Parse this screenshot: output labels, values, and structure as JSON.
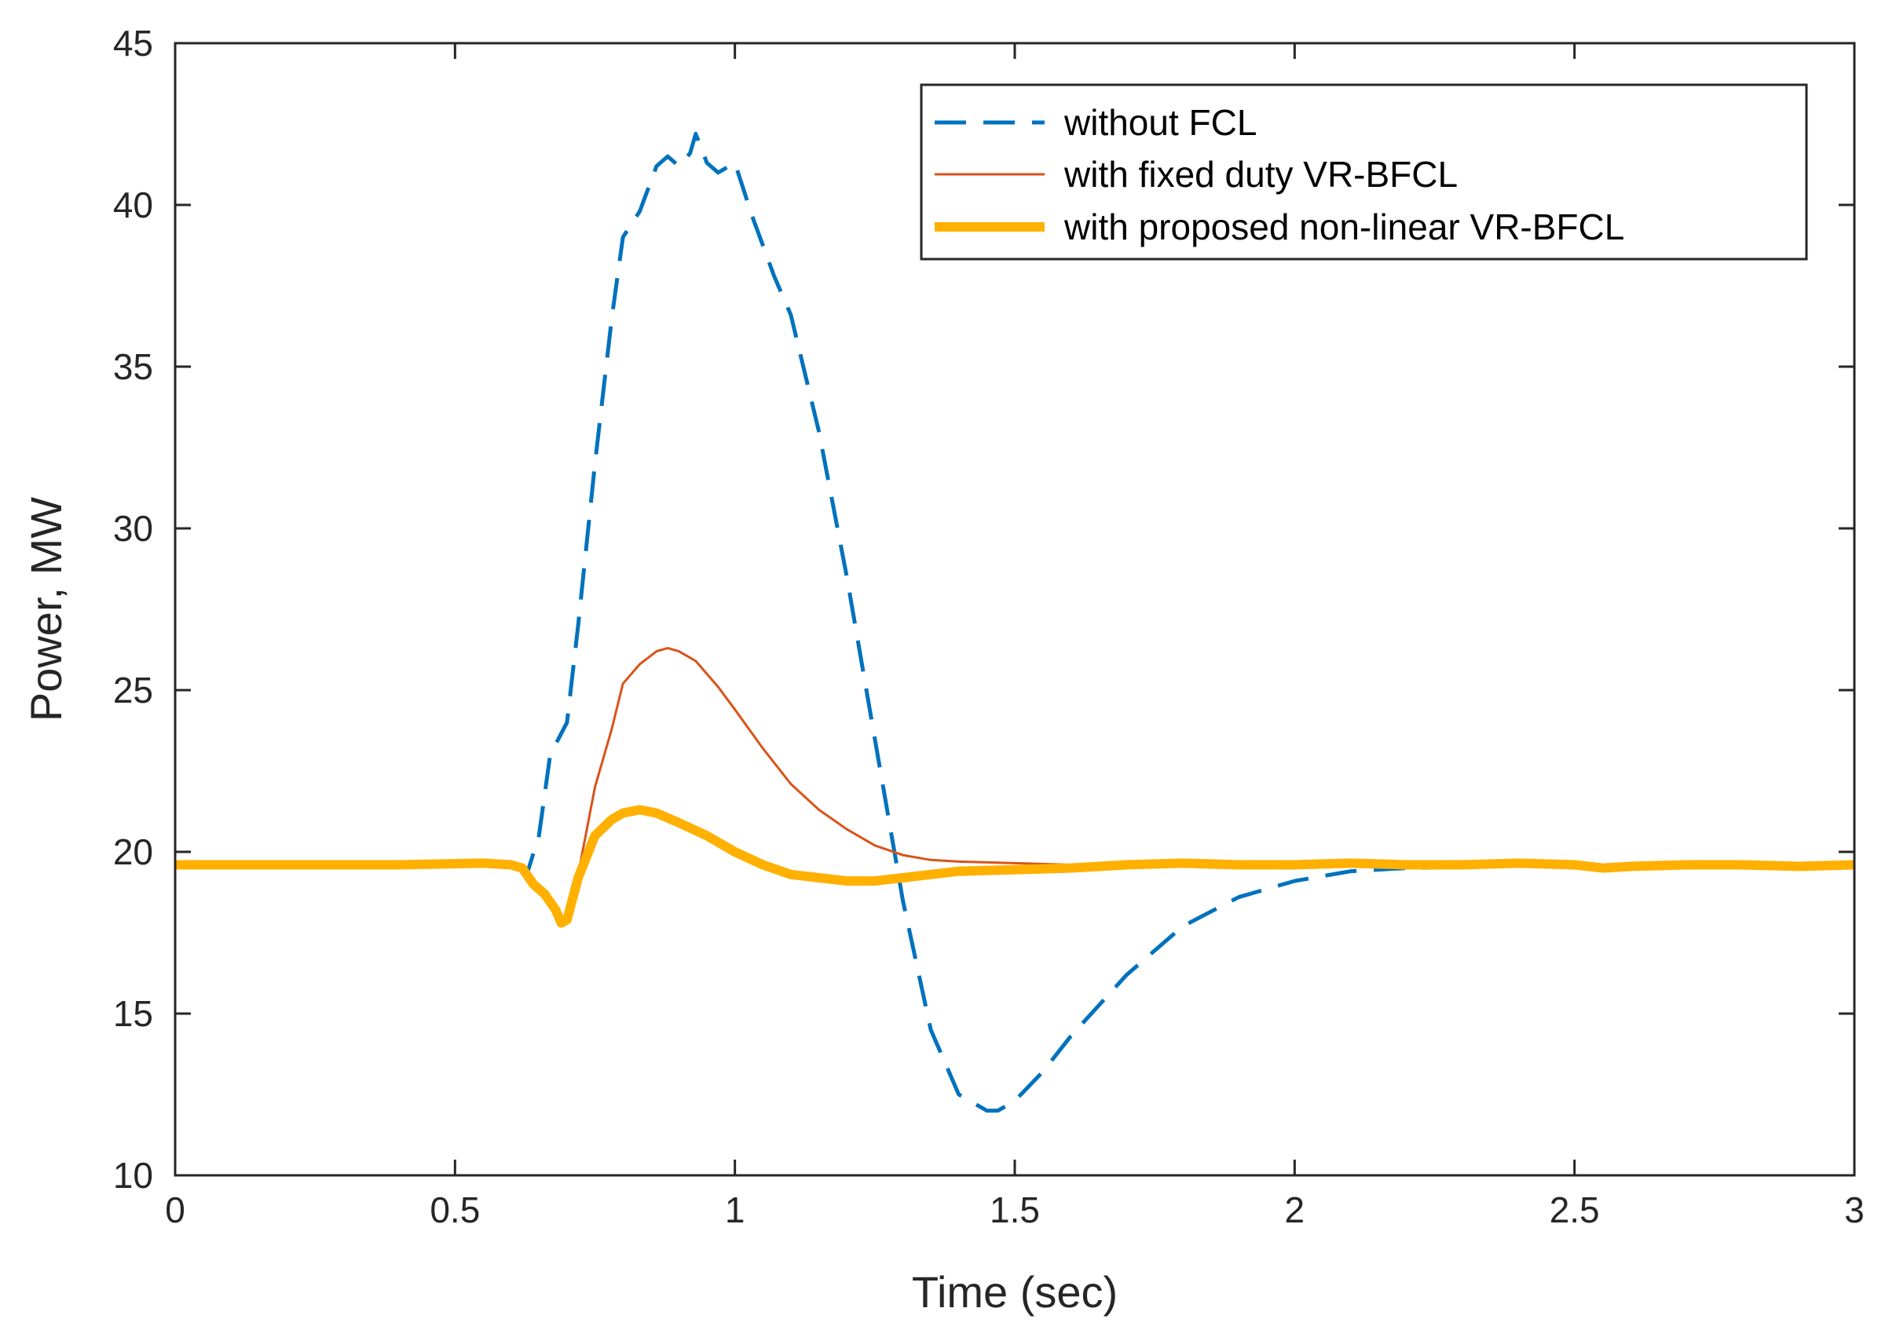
{
  "chart_data": {
    "type": "line",
    "xlabel": "Time (sec)",
    "ylabel": "Power, MW",
    "xlim": [
      0,
      3
    ],
    "ylim": [
      10,
      45
    ],
    "xticks": [
      "0",
      "0.5",
      "1",
      "1.5",
      "2",
      "2.5",
      "3"
    ],
    "yticks": [
      "10",
      "15",
      "20",
      "25",
      "30",
      "35",
      "40",
      "45"
    ],
    "grid": false,
    "legend_position": "top-right",
    "series": [
      {
        "name": "without FCL",
        "color": "#0072BD",
        "style": "dashed",
        "x": [
          0,
          0.3,
          0.6,
          0.63,
          0.65,
          0.67,
          0.7,
          0.72,
          0.75,
          0.78,
          0.8,
          0.83,
          0.86,
          0.88,
          0.9,
          0.92,
          0.93,
          0.95,
          0.97,
          1.0,
          1.03,
          1.07,
          1.1,
          1.15,
          1.2,
          1.25,
          1.3,
          1.35,
          1.4,
          1.45,
          1.47,
          1.5,
          1.55,
          1.6,
          1.7,
          1.8,
          1.9,
          2.0,
          2.1,
          2.2,
          2.5,
          3.0
        ],
        "values": [
          19.6,
          19.6,
          19.6,
          19.4,
          20.5,
          23.0,
          24.0,
          27.0,
          32.0,
          36.5,
          39.0,
          39.8,
          41.2,
          41.5,
          41.2,
          41.6,
          42.2,
          41.3,
          41.0,
          41.3,
          39.7,
          37.8,
          36.6,
          33.0,
          28.5,
          23.5,
          18.5,
          14.5,
          12.5,
          12.0,
          12.0,
          12.3,
          13.2,
          14.3,
          16.2,
          17.7,
          18.6,
          19.1,
          19.4,
          19.5,
          19.6,
          19.6
        ]
      },
      {
        "name": "with fixed duty VR-BFCL",
        "color": "#D95319",
        "style": "solid",
        "x": [
          0,
          0.6,
          0.62,
          0.65,
          0.67,
          0.69,
          0.7,
          0.72,
          0.75,
          0.78,
          0.8,
          0.83,
          0.86,
          0.88,
          0.9,
          0.93,
          0.97,
          1.0,
          1.05,
          1.1,
          1.15,
          1.2,
          1.25,
          1.3,
          1.35,
          1.4,
          1.5,
          1.6,
          2.0,
          3.0
        ],
        "values": [
          19.6,
          19.6,
          19.5,
          18.9,
          18.6,
          17.9,
          18.0,
          19.3,
          22.0,
          23.8,
          25.2,
          25.8,
          26.2,
          26.3,
          26.2,
          25.9,
          25.1,
          24.4,
          23.2,
          22.1,
          21.3,
          20.7,
          20.2,
          19.9,
          19.75,
          19.7,
          19.65,
          19.6,
          19.6,
          19.6
        ]
      },
      {
        "name": "with proposed non-linear VR-BFCL",
        "color": "#FFB000",
        "style": "thick",
        "x": [
          0,
          0.2,
          0.4,
          0.55,
          0.6,
          0.62,
          0.64,
          0.66,
          0.68,
          0.69,
          0.7,
          0.72,
          0.75,
          0.78,
          0.8,
          0.83,
          0.86,
          0.9,
          0.95,
          1.0,
          1.05,
          1.1,
          1.15,
          1.2,
          1.25,
          1.3,
          1.35,
          1.4,
          1.5,
          1.6,
          1.7,
          1.8,
          1.9,
          2.0,
          2.1,
          2.2,
          2.3,
          2.4,
          2.5,
          2.55,
          2.6,
          2.7,
          2.8,
          2.9,
          3.0
        ],
        "values": [
          19.6,
          19.6,
          19.6,
          19.65,
          19.6,
          19.5,
          19.0,
          18.7,
          18.2,
          17.8,
          17.9,
          19.2,
          20.5,
          21.0,
          21.2,
          21.3,
          21.2,
          20.9,
          20.5,
          20.0,
          19.6,
          19.3,
          19.2,
          19.1,
          19.1,
          19.2,
          19.3,
          19.4,
          19.45,
          19.5,
          19.6,
          19.65,
          19.6,
          19.6,
          19.65,
          19.6,
          19.6,
          19.65,
          19.6,
          19.5,
          19.55,
          19.6,
          19.6,
          19.55,
          19.6
        ]
      }
    ]
  }
}
